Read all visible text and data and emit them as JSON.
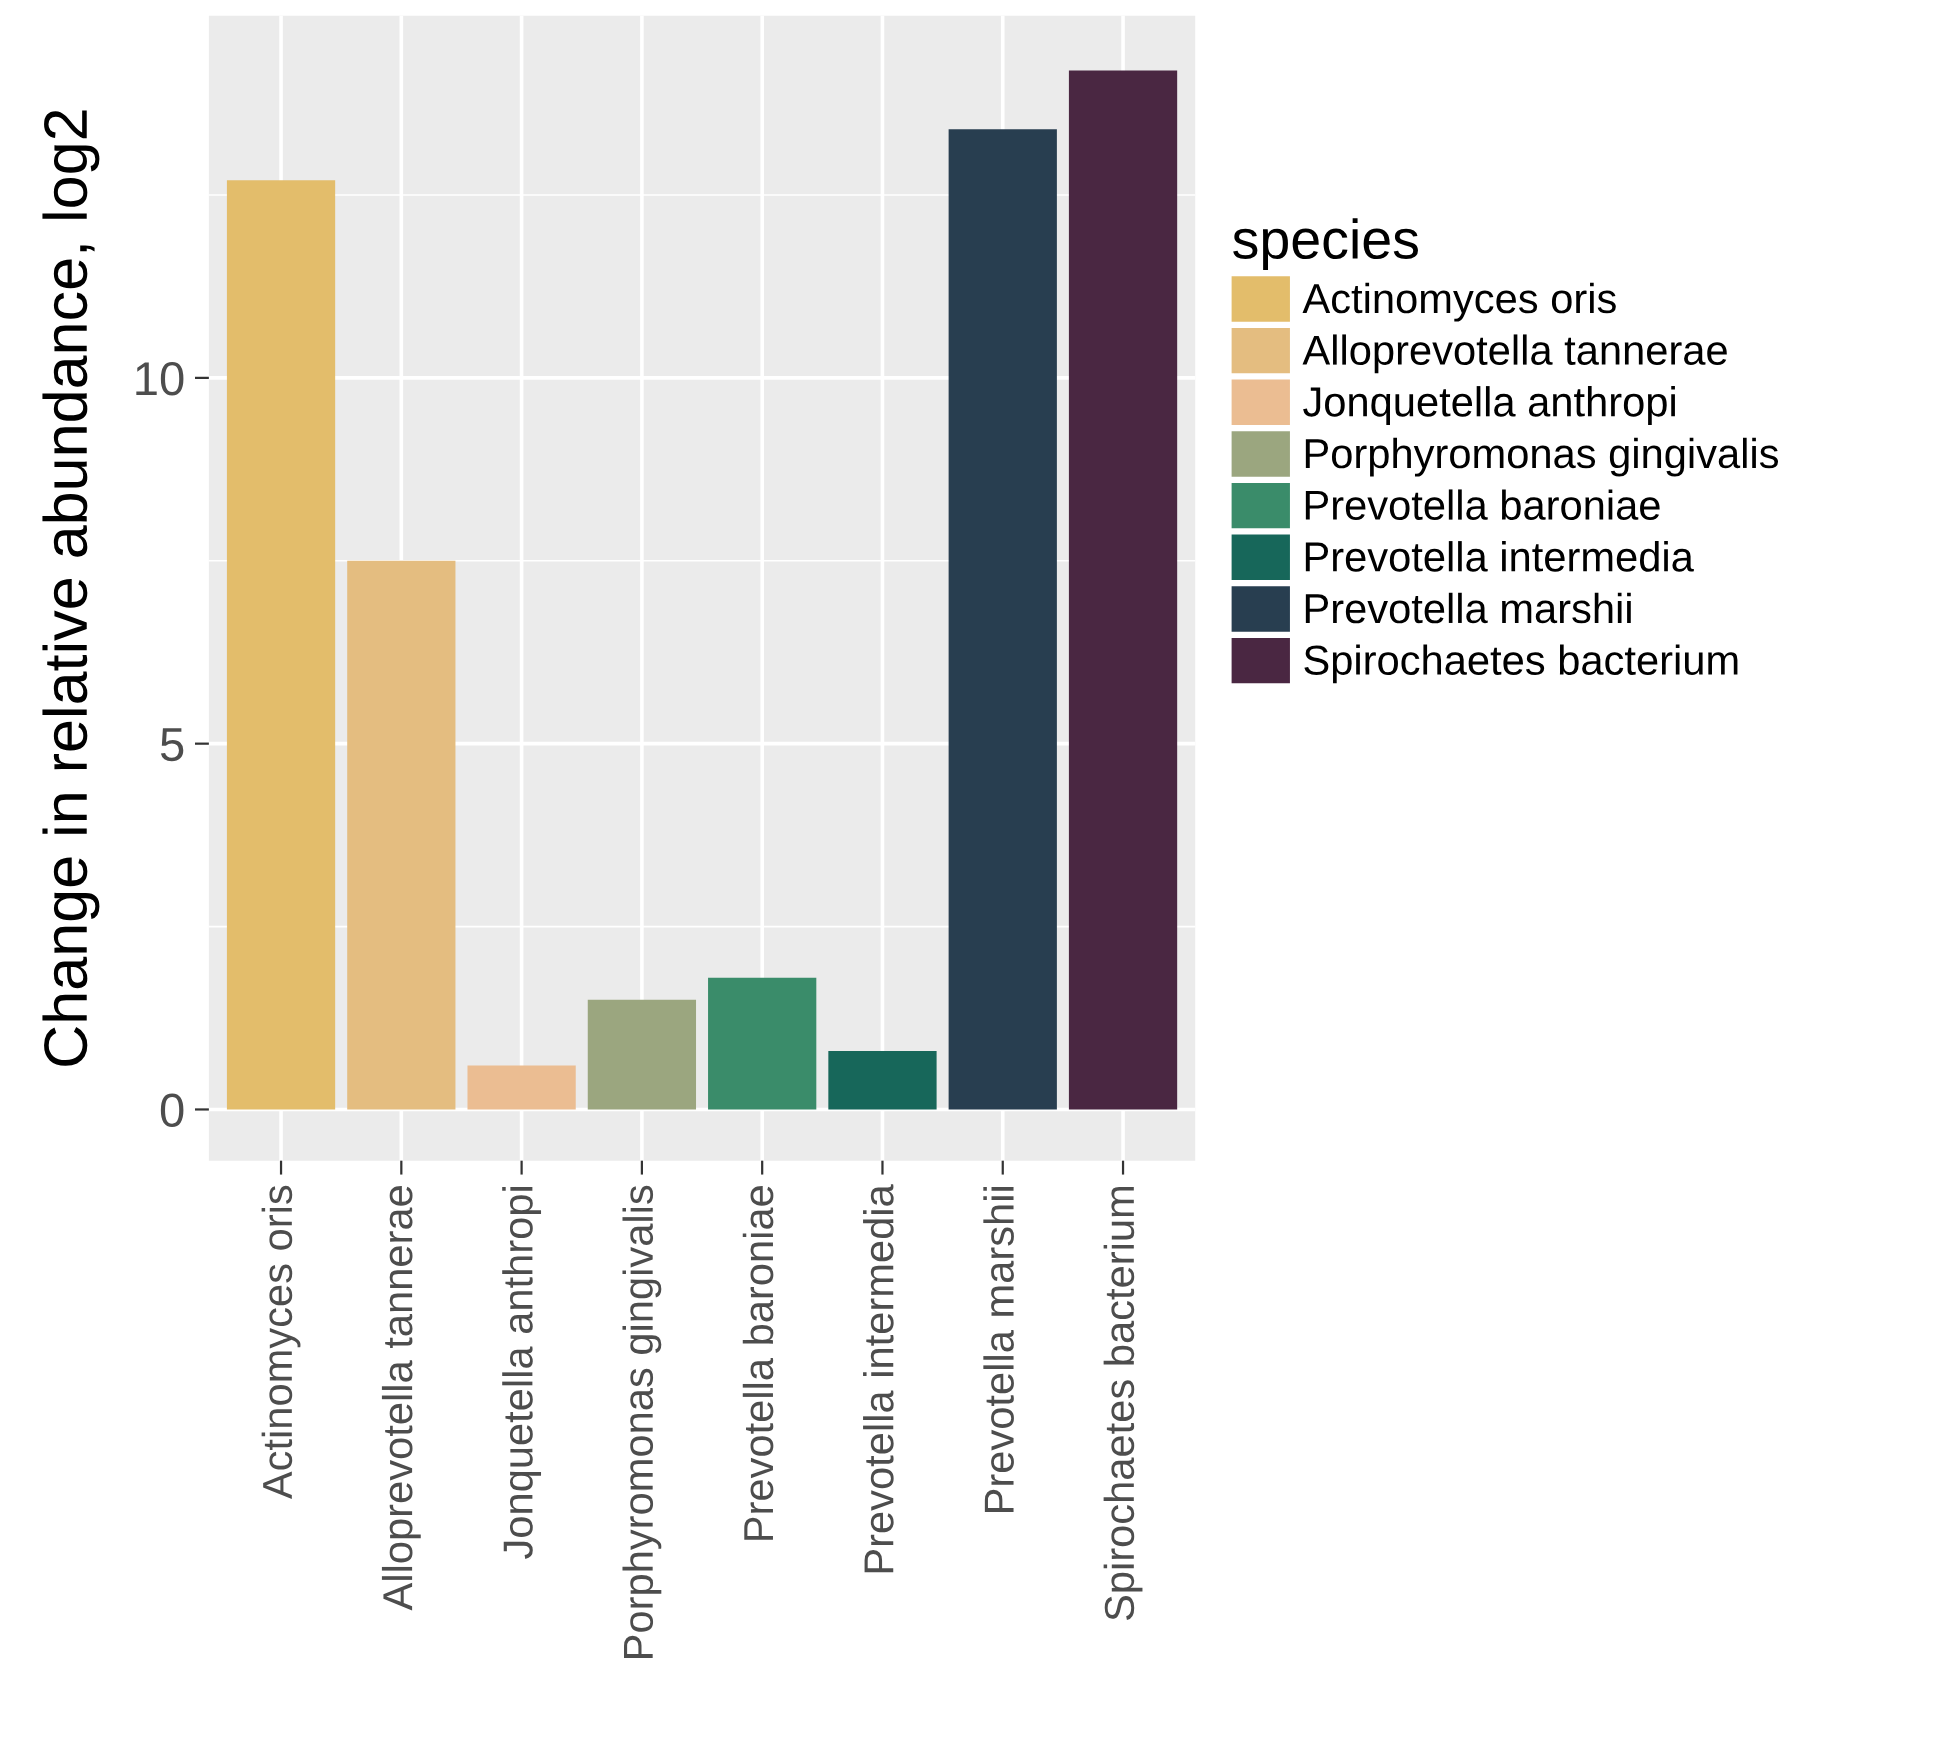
{
  "chart_data": {
    "type": "bar",
    "ylabel": "Change in relative abundance, log2",
    "legend_title": "species",
    "categories": [
      "Actinomyces oris",
      "Alloprevotella tannerae",
      "Jonquetella anthropi",
      "Porphyromonas gingivalis",
      "Prevotella baroniae",
      "Prevotella intermedia",
      "Prevotella marshii",
      "Spirochaetes bacterium"
    ],
    "series": [
      {
        "name": "Actinomyces oris",
        "color": "#e3bd6b",
        "values": [
          12.7,
          null,
          null,
          null,
          null,
          null,
          null,
          null
        ]
      },
      {
        "name": "Alloprevotella tannerae",
        "color": "#e4bd80",
        "values": [
          null,
          7.5,
          null,
          null,
          null,
          null,
          null,
          null
        ]
      },
      {
        "name": "Jonquetella anthropi",
        "color": "#ebbd92",
        "values": [
          null,
          null,
          0.6,
          null,
          null,
          null,
          null,
          null
        ]
      },
      {
        "name": "Porphyromonas gingivalis",
        "color": "#9ba67f",
        "values": [
          null,
          null,
          null,
          1.5,
          null,
          null,
          null,
          null
        ]
      },
      {
        "name": "Prevotella baroniae",
        "color": "#3a8c6a",
        "values": [
          null,
          null,
          null,
          null,
          1.8,
          null,
          null,
          null
        ]
      },
      {
        "name": "Prevotella intermedia",
        "color": "#17675a",
        "values": [
          null,
          null,
          null,
          null,
          null,
          0.8,
          null,
          null
        ]
      },
      {
        "name": "Prevotella marshii",
        "color": "#283e50",
        "values": [
          null,
          null,
          null,
          null,
          null,
          null,
          13.4,
          null
        ]
      },
      {
        "name": "Spirochaetes bacterium",
        "color": "#4a2742",
        "values": [
          null,
          null,
          null,
          null,
          null,
          null,
          null,
          14.2
        ]
      }
    ],
    "ylim": [
      -0.7,
      14.95
    ],
    "yticks": [
      0,
      5,
      10
    ],
    "grid": true,
    "legend": "right"
  }
}
